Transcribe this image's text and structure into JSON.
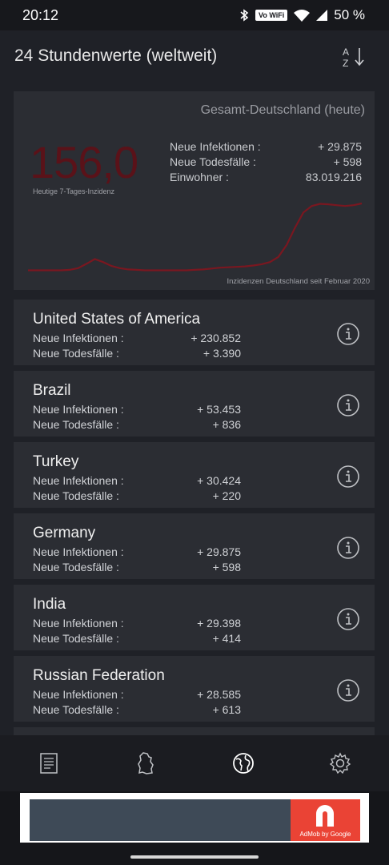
{
  "status_bar": {
    "time": "20:12",
    "wifi_tag": "Vo WiFi",
    "battery": "50 %"
  },
  "header": {
    "title": "24 Stundenwerte (weltweit)",
    "sort_icon": "sort-az-icon",
    "sort_letter_a": "A",
    "sort_letter_z": "Z"
  },
  "germany_summary": {
    "title": "Gesamt-Deutschland (heute)",
    "incidence_value": "156,0",
    "incidence_label": "Heutige 7-Tages-Inzidenz",
    "stats": [
      {
        "label": "Neue Infektionen :",
        "value": "+ 29.875"
      },
      {
        "label": "Neue Todesfälle :",
        "value": "+ 598"
      },
      {
        "label": "Einwohner :",
        "value": "83.019.216"
      }
    ],
    "chart_caption": "Inzidenzen Deutschland seit Februar 2020",
    "accent_color": "#7a1720"
  },
  "chart_data": {
    "type": "line",
    "title": "Inzidenzen Deutschland seit Februar 2020",
    "xlabel": "",
    "ylabel": "",
    "x": [
      0,
      1,
      2,
      3,
      4,
      5,
      6,
      7,
      8,
      9,
      10,
      11,
      12,
      13,
      14,
      15,
      16,
      17,
      18,
      19,
      20,
      21,
      22,
      23,
      24,
      25,
      26,
      27,
      28,
      29,
      30,
      31,
      32,
      33,
      34,
      35,
      36,
      37,
      38,
      39,
      40
    ],
    "values": [
      1,
      1,
      1,
      1,
      1,
      2,
      6,
      16,
      27,
      20,
      11,
      6,
      3,
      2,
      1,
      1,
      1,
      1,
      1,
      1,
      2,
      3,
      5,
      7,
      8,
      9,
      10,
      12,
      15,
      20,
      32,
      60,
      100,
      135,
      150,
      155,
      154,
      152,
      150,
      152,
      156
    ],
    "series_color": "#7a1720",
    "grid": false
  },
  "countries": [
    {
      "name": "United States of America",
      "infections_label": "Neue Infektionen :",
      "infections": "+ 230.852",
      "deaths_label": "Neue Todesfälle :",
      "deaths": "+ 3.390"
    },
    {
      "name": "Brazil",
      "infections_label": "Neue Infektionen :",
      "infections": "+ 53.453",
      "deaths_label": "Neue Todesfälle :",
      "deaths": "+ 836"
    },
    {
      "name": "Turkey",
      "infections_label": "Neue Infektionen :",
      "infections": "+ 30.424",
      "deaths_label": "Neue Todesfälle :",
      "deaths": "+ 220"
    },
    {
      "name": "Germany",
      "infections_label": "Neue Infektionen :",
      "infections": "+ 29.875",
      "deaths_label": "Neue Todesfälle :",
      "deaths": "+ 598"
    },
    {
      "name": "India",
      "infections_label": "Neue Infektionen :",
      "infections": "+ 29.398",
      "deaths_label": "Neue Todesfälle :",
      "deaths": "+ 414"
    },
    {
      "name": "Russian Federation",
      "infections_label": "Neue Infektionen :",
      "infections": "+ 28.585",
      "deaths_label": "Neue Todesfälle :",
      "deaths": "+ 613"
    }
  ],
  "bottom_nav": [
    {
      "icon": "news-list-icon",
      "active": false
    },
    {
      "icon": "germany-map-icon",
      "active": false
    },
    {
      "icon": "globe-icon",
      "active": true
    },
    {
      "icon": "settings-gear-icon",
      "active": false
    }
  ],
  "ad": {
    "caption": "AdMob by Google",
    "brand_color": "#ea4335"
  }
}
